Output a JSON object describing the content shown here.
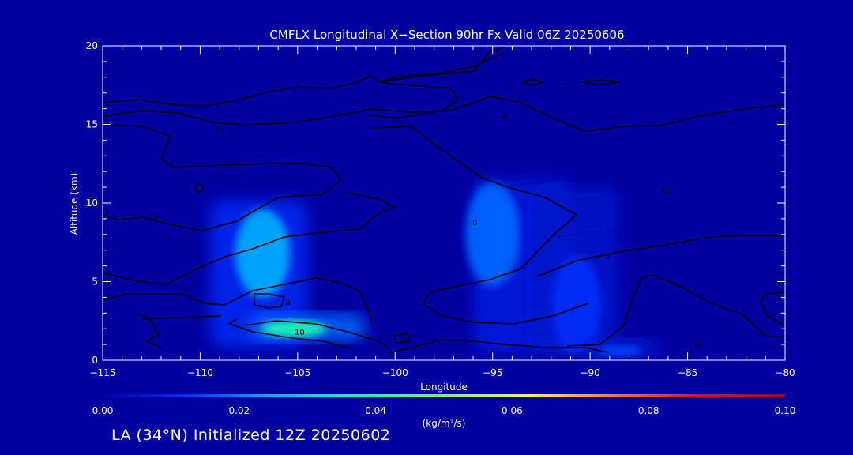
{
  "footer_text": "LA (34°N) Initialized 12Z 20250602",
  "chart_data": {
    "type": "heatmap",
    "title": "CMFLX Longitudinal X−Section 90hr  Fx Valid 06Z 20250606",
    "xlabel": "Longitude",
    "ylabel": "Altitude (km)",
    "xlim": [
      -115,
      -80
    ],
    "ylim": [
      0,
      20
    ],
    "x_ticks": [
      -115,
      -110,
      -105,
      -100,
      -95,
      -90,
      -85,
      -80
    ],
    "x_tick_labels": [
      "−115",
      "−110",
      "−105",
      "−100",
      "−95",
      "−90",
      "−85",
      "−80"
    ],
    "y_ticks": [
      0,
      5,
      10,
      15,
      20
    ],
    "y_tick_labels": [
      "0",
      "5",
      "10",
      "15",
      "20"
    ],
    "grid": false,
    "background_color": "#0000a0",
    "colorbar": {
      "label": "(kg/m²/s)",
      "range": [
        0,
        0.1
      ],
      "ticks": [
        0.0,
        0.02,
        0.04,
        0.06,
        0.08,
        0.1
      ],
      "tick_labels": [
        "0.00",
        "0.02",
        "0.04",
        "0.06",
        "0.08",
        "0.10"
      ],
      "colors": [
        "#0000a0",
        "#0030ff",
        "#00b0ff",
        "#00ffd0",
        "#80ff40",
        "#ffff00",
        "#ff8000",
        "#ff0000",
        "#b00000"
      ]
    },
    "shaded_regions": [
      {
        "lon": [
          -109.5,
          -104.5
        ],
        "alt": [
          0.8,
          10.2
        ],
        "peak_lon": -106.8,
        "peak_alt": 6.8,
        "peak_value": 0.025
      },
      {
        "lon": [
          -107.5,
          -101.5
        ],
        "alt": [
          1.2,
          3.0
        ],
        "peak_lon": -105.2,
        "peak_alt": 2.0,
        "peak_value": 0.04
      },
      {
        "lon": [
          -96.0,
          -91.0
        ],
        "alt": [
          0.5,
          11.5
        ],
        "peak_lon": -95.0,
        "peak_alt": 8.0,
        "peak_value": 0.018
      },
      {
        "lon": [
          -93.0,
          -88.5
        ],
        "alt": [
          0.5,
          11.0
        ],
        "peak_lon": -90.7,
        "peak_alt": 3.5,
        "peak_value": 0.012
      },
      {
        "lon": [
          -90.5,
          -86.5
        ],
        "alt": [
          0.2,
          1.4
        ],
        "peak_lon": -88.5,
        "peak_alt": 0.6,
        "peak_value": 0.015
      }
    ],
    "contour_labels": [
      {
        "text": "10",
        "lon": -104.9,
        "alt": 1.8
      },
      {
        "text": "0",
        "lon": -105.5,
        "alt": 3.7
      },
      {
        "text": "10",
        "lon": -112.4,
        "alt": 9.2
      },
      {
        "text": "10",
        "lon": -109.0,
        "alt": 14.8
      },
      {
        "text": "0",
        "lon": -95.9,
        "alt": 8.8
      },
      {
        "text": "0",
        "lon": -89.1,
        "alt": 6.6
      },
      {
        "text": "0",
        "lon": -84.5,
        "alt": 1.0
      },
      {
        "text": "10",
        "lon": -86.1,
        "alt": 10.8
      },
      {
        "text": "0",
        "lon": -91.2,
        "alt": 17.5
      },
      {
        "text": "0",
        "lon": -94.4,
        "alt": 15.5
      },
      {
        "text": "0",
        "lon": -104.5,
        "alt": 0.8
      }
    ]
  }
}
